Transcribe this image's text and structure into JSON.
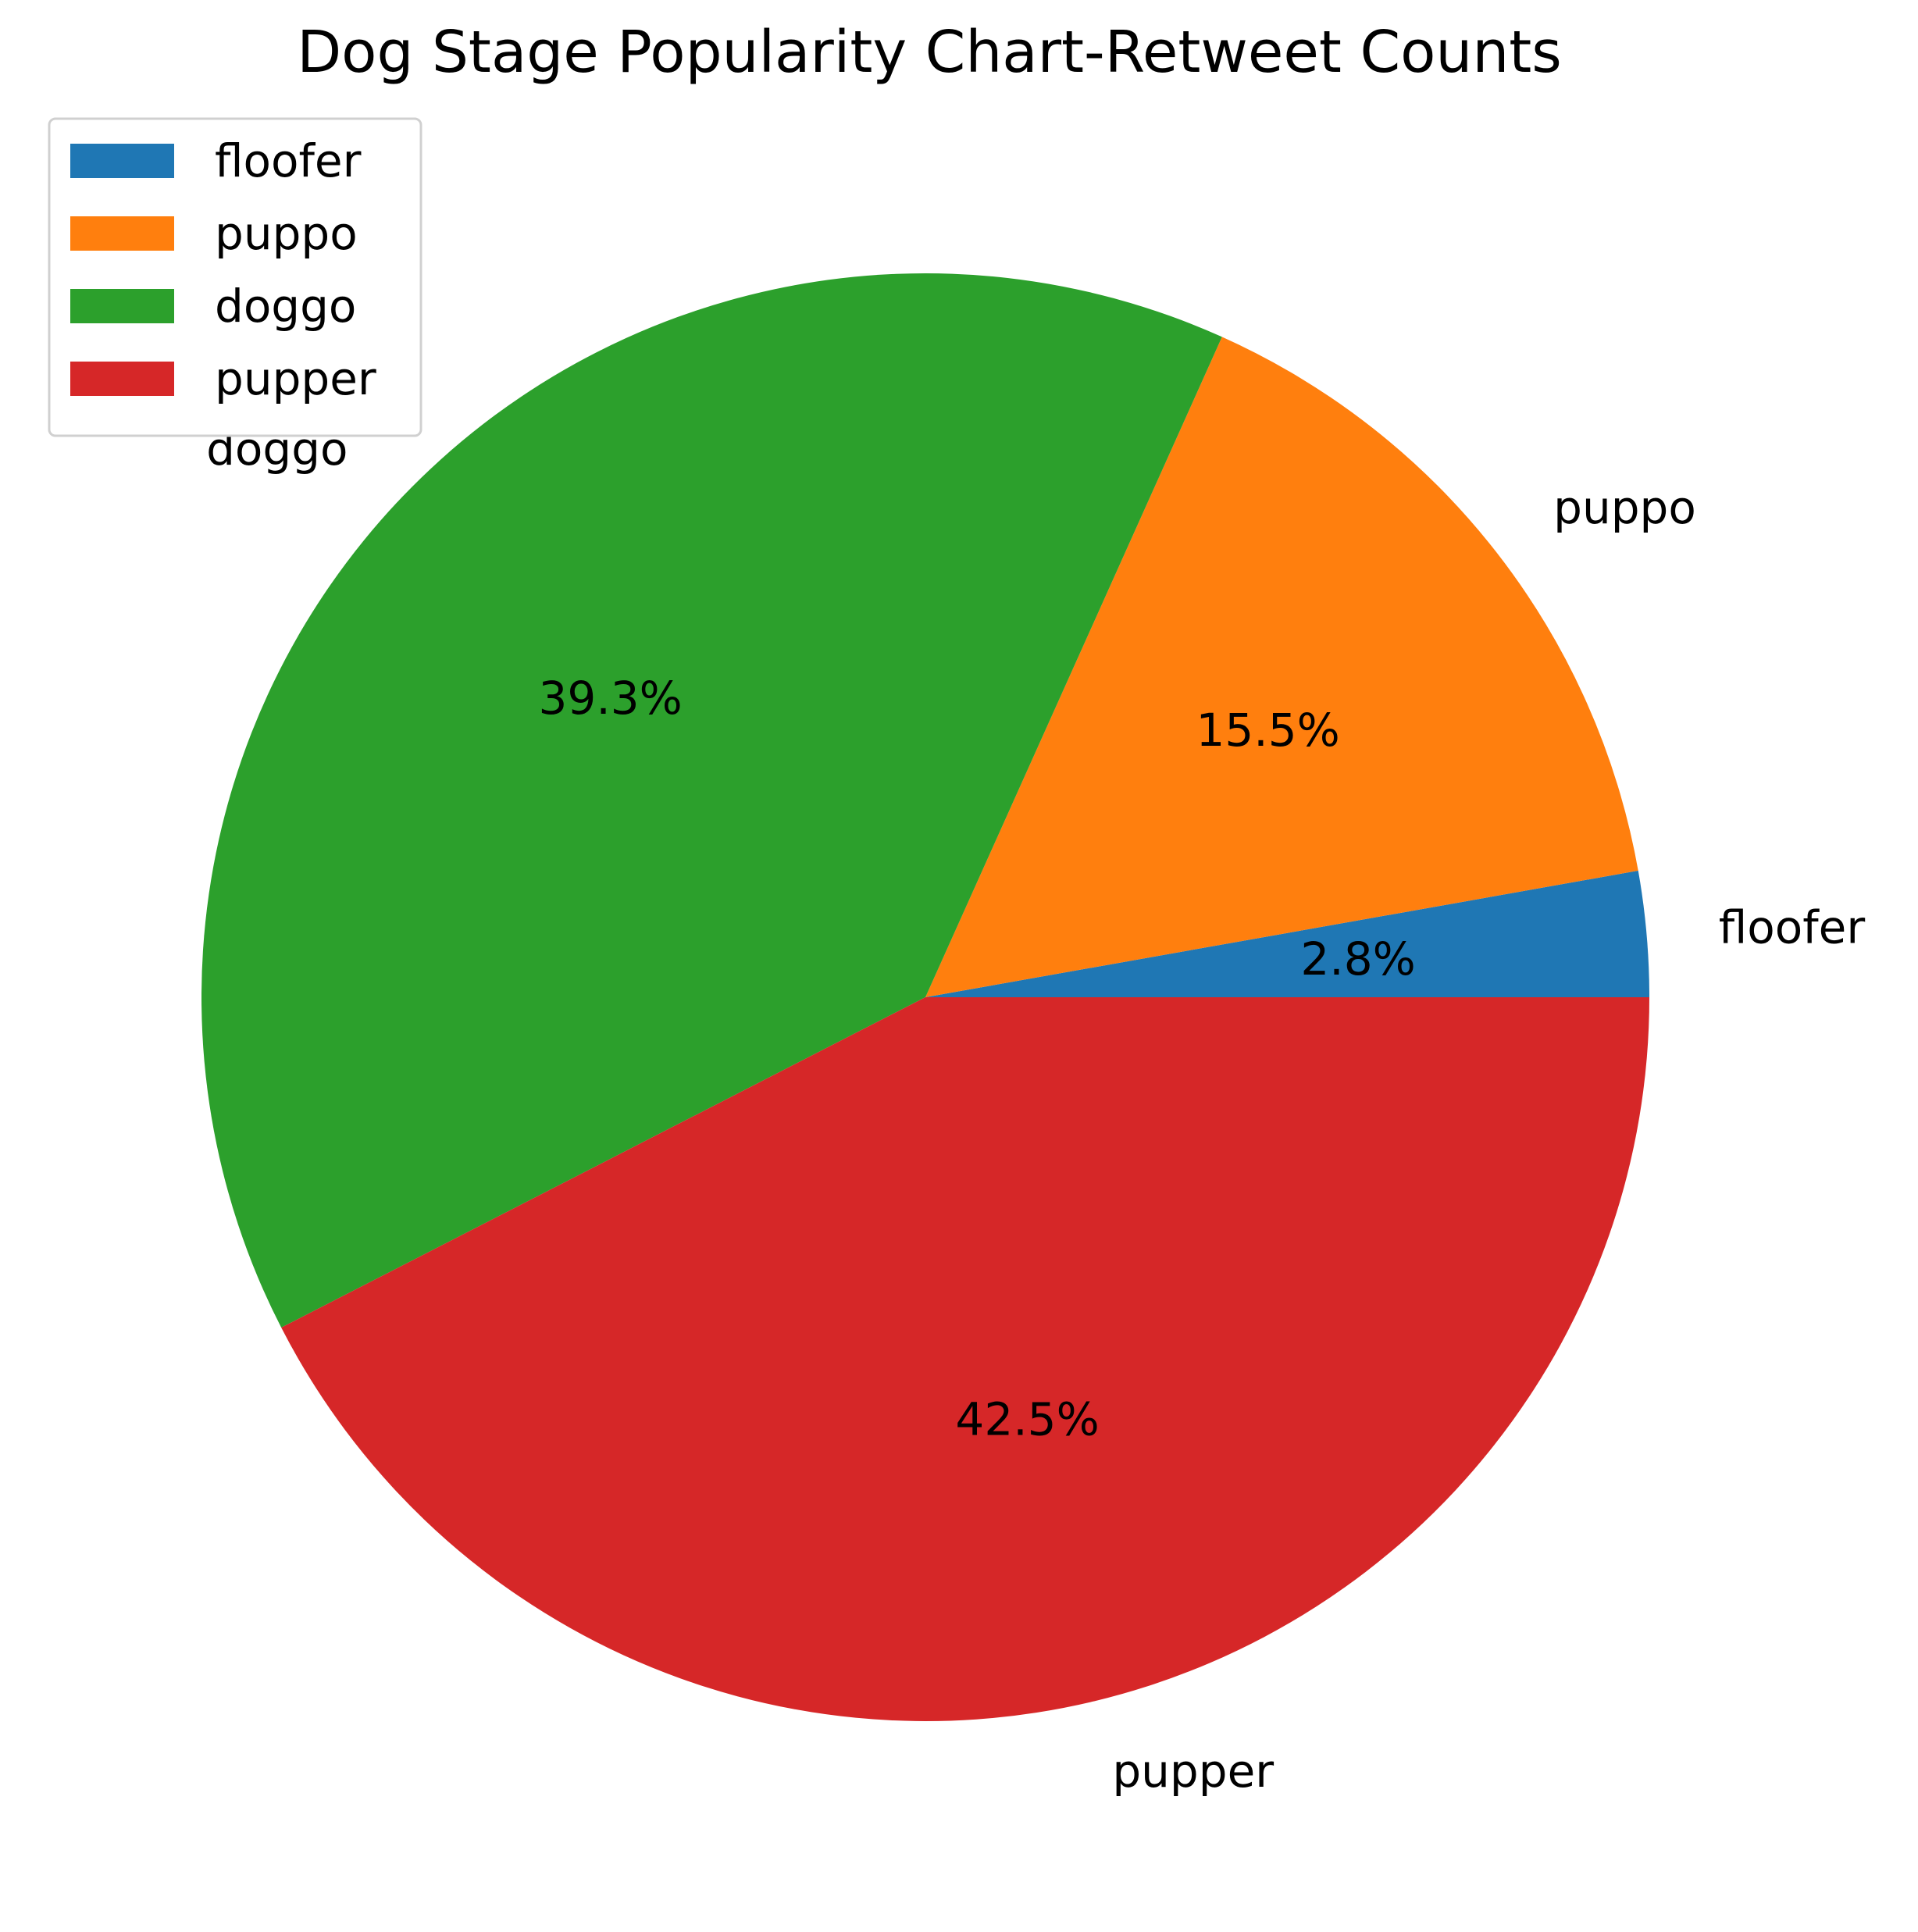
{
  "chart_data": {
    "type": "pie",
    "title": "Dog Stage Popularity Chart-Retweet Counts",
    "categories": [
      "floofer",
      "puppo",
      "doggo",
      "pupper"
    ],
    "values": [
      2.8,
      15.5,
      39.3,
      42.5
    ],
    "labels": [
      "2.8%",
      "15.5%",
      "39.3%",
      "42.5%"
    ],
    "colors": [
      "#1f77b4",
      "#ff7f0e",
      "#2ca02c",
      "#d62728"
    ],
    "start_angle_deg": 0,
    "direction": "counterclockwise",
    "legend": {
      "placement": "upper-left",
      "entries": [
        "floofer",
        "puppo",
        "doggo",
        "pupper"
      ]
    }
  }
}
